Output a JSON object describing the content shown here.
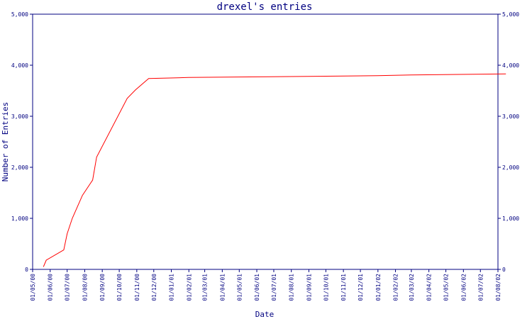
{
  "chart_data": {
    "type": "line",
    "title": "drexel's entries",
    "xlabel": "Date",
    "ylabel": "Number of Entries",
    "ylim": [
      0,
      5000
    ],
    "yticks": [
      0,
      1000,
      2000,
      3000,
      4000,
      5000
    ],
    "ytick_labels": [
      "0",
      "1,000",
      "2,000",
      "3,000",
      "4,000",
      "5,000"
    ],
    "x_tick_labels": [
      "01/05/00",
      "01/06/00",
      "01/07/00",
      "01/08/00",
      "01/09/00",
      "01/10/00",
      "01/11/00",
      "01/12/00",
      "01/01/01",
      "01/02/01",
      "01/03/01",
      "01/04/01",
      "01/05/01",
      "01/06/01",
      "01/07/01",
      "01/08/01",
      "01/09/01",
      "01/10/01",
      "01/11/01",
      "01/12/01",
      "01/01/02",
      "01/02/02",
      "01/03/02",
      "01/04/02",
      "01/05/02",
      "01/06/02",
      "01/07/02",
      "01/08/02"
    ],
    "grid": false,
    "series": [
      {
        "color": "#ff0000",
        "x": [
          "2000-05-20",
          "2000-05-25",
          "2000-06-25",
          "2000-07-01",
          "2000-07-10",
          "2000-07-28",
          "2000-08-15",
          "2000-08-22",
          "2000-10-15",
          "2000-10-30",
          "2000-11-22",
          "2000-12-31",
          "2001-01-31",
          "2001-04-30",
          "2001-08-31",
          "2001-12-31",
          "2002-02-28",
          "2002-08-15"
        ],
        "values": [
          50,
          180,
          380,
          700,
          1000,
          1450,
          1750,
          2200,
          3350,
          3520,
          3740,
          3750,
          3760,
          3770,
          3780,
          3795,
          3810,
          3830
        ]
      }
    ]
  }
}
